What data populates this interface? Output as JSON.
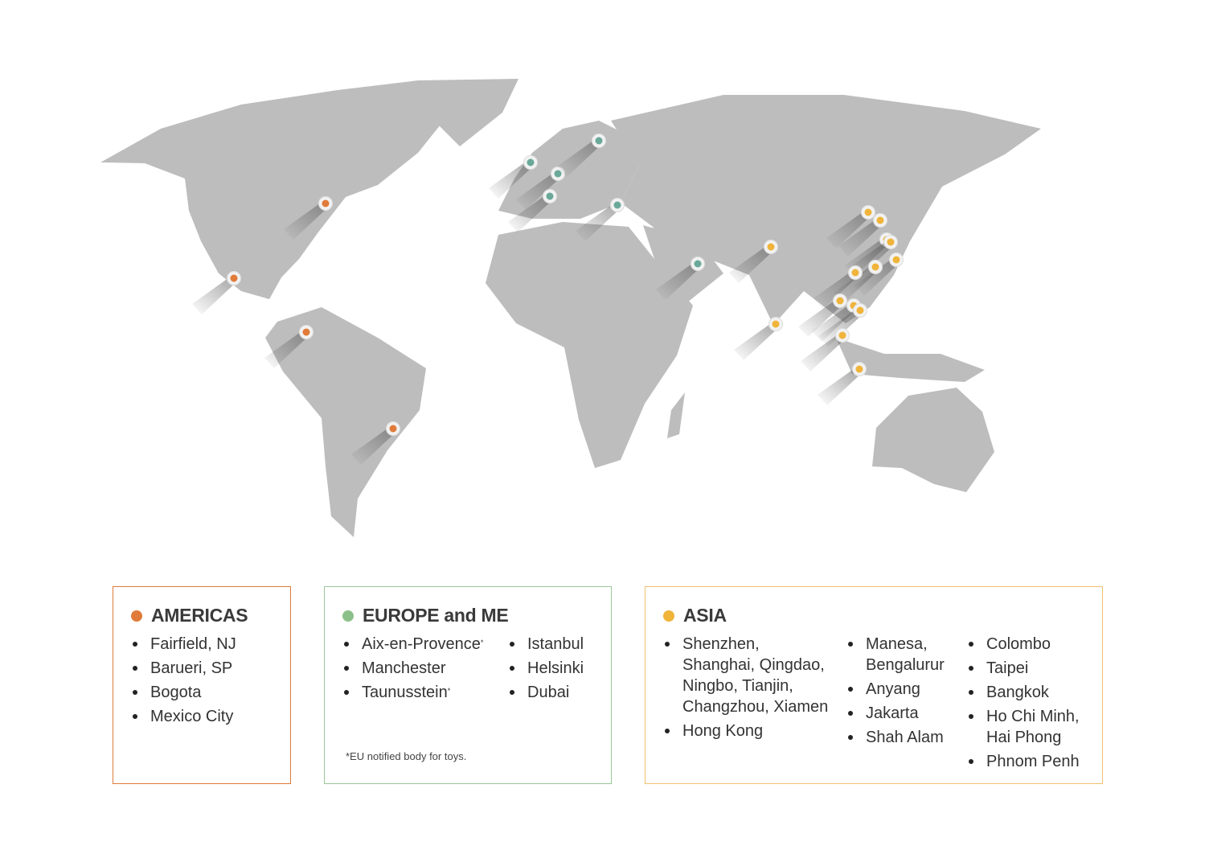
{
  "colors": {
    "land": "#bdbdbd",
    "americas": "#e07b39",
    "europe": "#8cc08a",
    "asia": "#f0b43a",
    "europe_pin": "#6aa89a"
  },
  "regions": [
    {
      "title": "AMERICAS",
      "items": [
        "Fairfield, NJ",
        "Barueri, SP",
        "Bogota",
        "Mexico City"
      ]
    },
    {
      "title": "EUROPE and ME",
      "items": [
        "Aix-en-Provence",
        "Manchester",
        "Taunusstein",
        "Istanbul",
        "Helsinki",
        "Dubai"
      ],
      "asterisk": "*",
      "note": "*EU notified body for toys."
    },
    {
      "title": "ASIA",
      "items": [
        "Shenzhen, Shanghai, Qingdao, Ningbo, Tianjin, Changzhou, Xiamen",
        "Hong Kong",
        "Manesa, Bengalurur",
        "Anyang",
        "Jakarta",
        "Shah Alam",
        "Colombo",
        "Taipei",
        "Bangkok",
        "Ho Chi Minh, Hai Phong",
        "Phnom Penh"
      ]
    }
  ]
}
